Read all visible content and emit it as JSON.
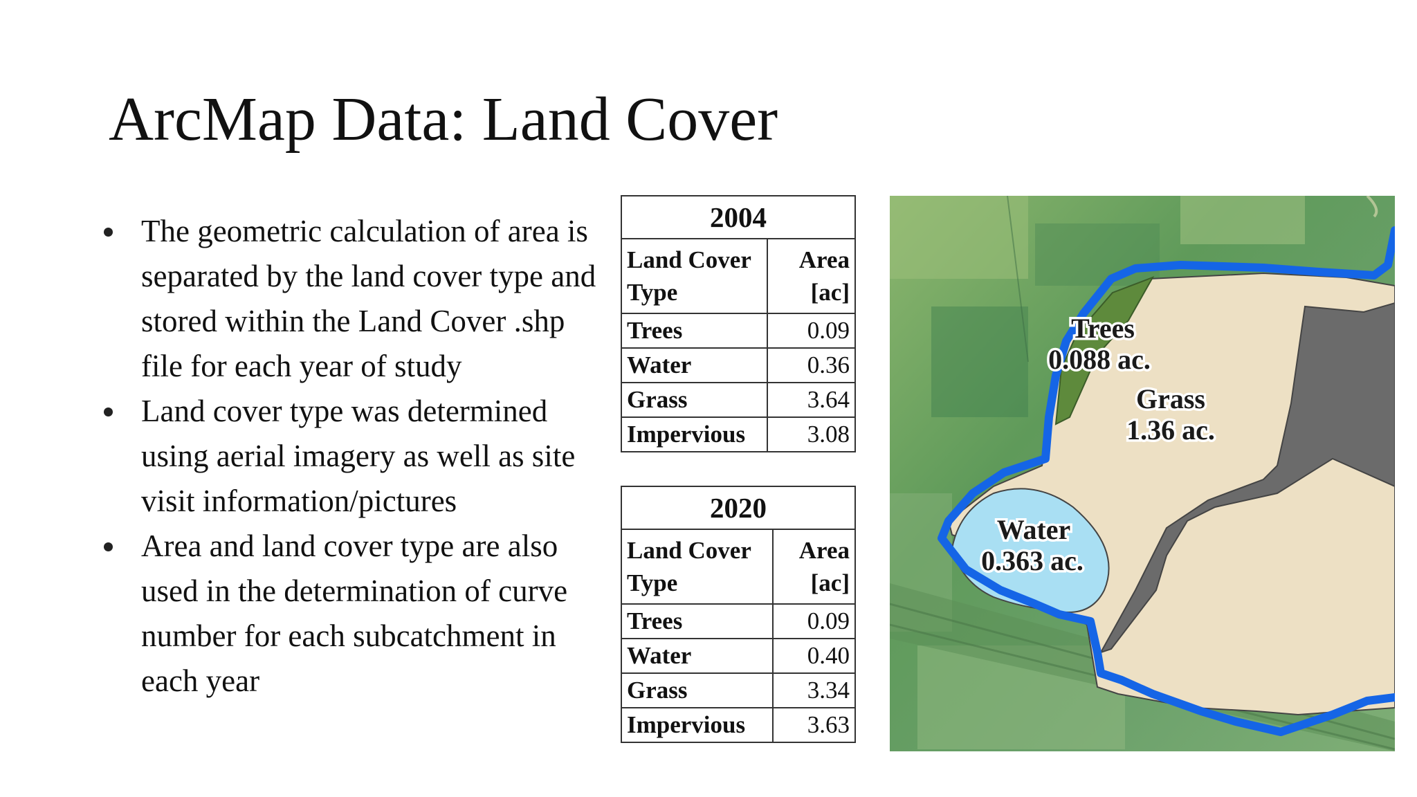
{
  "slide": {
    "title": "ArcMap Data: Land Cover",
    "bullets": [
      "The geometric calculation of area is separated by the land cover type and stored within the Land Cover .shp file for each year of study",
      "Land cover type was determined using aerial imagery as well as site visit information/pictures",
      "Area and land cover type are also used in the determination of curve number for each subcatchment in each year"
    ]
  },
  "tables": [
    {
      "year": "2004",
      "header_type": "Land Cover Type",
      "header_area": "Area [ac]",
      "rows": [
        {
          "type": "Trees",
          "area": "0.09"
        },
        {
          "type": "Water",
          "area": "0.36"
        },
        {
          "type": "Grass",
          "area": "3.64"
        },
        {
          "type": "Impervious",
          "area": "3.08"
        }
      ]
    },
    {
      "year": "2020",
      "header_type": "Land Cover Type",
      "header_area": "Area [ac]",
      "rows": [
        {
          "type": "Trees",
          "area": "0.09"
        },
        {
          "type": "Water",
          "area": "0.40"
        },
        {
          "type": "Grass",
          "area": "3.34"
        },
        {
          "type": "Impervious",
          "area": "3.63"
        }
      ]
    }
  ],
  "map": {
    "labels": {
      "trees_name": "Trees",
      "trees_area": "0.088 ac.",
      "grass_name": "Grass",
      "grass_area": "1.36 ac.",
      "water_name": "Water",
      "water_area": "0.363 ac."
    },
    "colors": {
      "boundary": "#1565e6",
      "grass": "#ede0c4",
      "water": "#a9dff3",
      "impervious": "#6b6b6b",
      "trees": "#5e8a3c",
      "aerial_green": "#5f9a5a"
    }
  }
}
